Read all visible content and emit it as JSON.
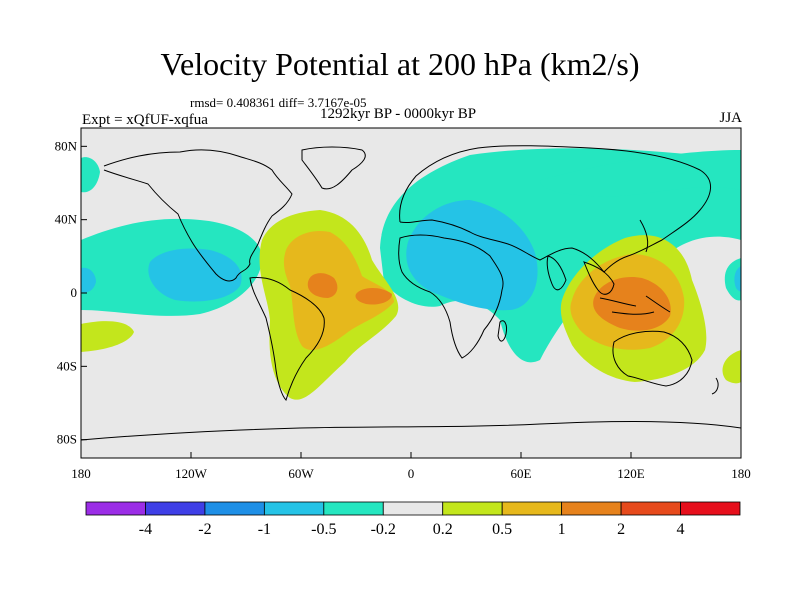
{
  "header": {
    "title": "Velocity Potential at 200 hPa (km2/s)",
    "stats": "rmsd= 0.408361 diff= 3.7167e-05",
    "subtitle": "1292kyr BP - 0000kyr BP",
    "left_label": "Expt = xQfUF-xqfua",
    "right_label": "JJA"
  },
  "chart_data": {
    "type": "heatmap",
    "title": "Velocity Potential at 200 hPa (km2/s)",
    "xlabel": "",
    "ylabel": "",
    "x_range": [
      -180,
      180
    ],
    "y_range": [
      -90,
      90
    ],
    "x_ticks": [
      {
        "value": -180,
        "label": "180"
      },
      {
        "value": -120,
        "label": "120W"
      },
      {
        "value": -60,
        "label": "60W"
      },
      {
        "value": 0,
        "label": "0"
      },
      {
        "value": 60,
        "label": "60E"
      },
      {
        "value": 120,
        "label": "120E"
      },
      {
        "value": 180,
        "label": "180"
      }
    ],
    "y_ticks": [
      {
        "value": 80,
        "label": "80N"
      },
      {
        "value": 40,
        "label": "40N"
      },
      {
        "value": 0,
        "label": "0"
      },
      {
        "value": -40,
        "label": "40S"
      },
      {
        "value": -80,
        "label": "80S"
      }
    ],
    "colorbar": {
      "labels": [
        "-4",
        "-2",
        "-1",
        "-0.5",
        "-0.2",
        "0.2",
        "0.5",
        "1",
        "2",
        "4"
      ],
      "colors": [
        "#9b2de6",
        "#3f3fe6",
        "#1e8fe6",
        "#25c3e6",
        "#25e6c0",
        "#e8e8e8",
        "#c3e61c",
        "#e6b81c",
        "#e6821c",
        "#e64a1c",
        "#e60f1c"
      ]
    },
    "features": [
      {
        "name": "Western Pacific positive max",
        "lon": 125,
        "lat": 5,
        "level": "2"
      },
      {
        "name": "Tropical Atlantic positive max",
        "lon": -45,
        "lat": 5,
        "level": "2"
      },
      {
        "name": "Africa / Indian Ocean negative",
        "lon": 30,
        "lat": 10,
        "level": "-0.5"
      },
      {
        "name": "East Pacific negative",
        "lon": -130,
        "lat": 5,
        "level": "-0.5"
      }
    ]
  }
}
